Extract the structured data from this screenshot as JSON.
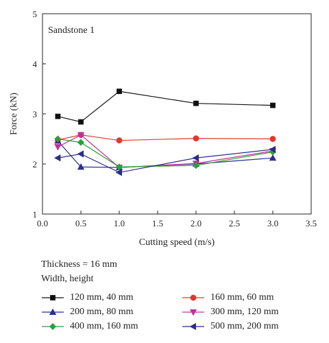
{
  "chart_data": {
    "type": "line",
    "annotation": "Sandstone 1",
    "xlabel": "Cutting speed (m/s)",
    "ylabel": "Force (kN)",
    "xlim": [
      0.0,
      3.5
    ],
    "ylim": [
      1,
      5
    ],
    "xticks": [
      "0.0",
      "0.5",
      "1.0",
      "1.5",
      "2.0",
      "2.5",
      "3.0",
      "3.5"
    ],
    "yticks": [
      "1",
      "2",
      "3",
      "4",
      "5"
    ],
    "x": [
      0.2,
      0.5,
      1.0,
      2.0,
      3.0
    ],
    "grid": false,
    "legend_placement": "bottom",
    "legend_heading": "Thickness = 16 mm",
    "legend_subheading": "Width, height",
    "series": [
      {
        "name": "120 mm, 40 mm",
        "values": [
          2.95,
          2.84,
          3.45,
          3.21,
          3.17
        ],
        "color": "#111111",
        "marker": "square"
      },
      {
        "name": "160 mm, 60 mm",
        "values": [
          2.48,
          2.58,
          2.47,
          2.51,
          2.5
        ],
        "color": "#e0392b",
        "marker": "circle"
      },
      {
        "name": "200 mm, 80 mm",
        "values": [
          2.46,
          1.94,
          1.93,
          2.0,
          2.12
        ],
        "color": "#2b2f8f",
        "marker": "triangle-up"
      },
      {
        "name": "300 mm, 120 mm",
        "values": [
          2.34,
          2.58,
          1.93,
          2.01,
          2.26
        ],
        "color": "#c0309a",
        "marker": "triangle-down"
      },
      {
        "name": "400 mm, 160 mm",
        "values": [
          2.5,
          2.43,
          1.94,
          1.97,
          2.24
        ],
        "color": "#2e9e3c",
        "marker": "diamond"
      },
      {
        "name": "500 mm, 200 mm",
        "values": [
          2.12,
          2.2,
          1.83,
          2.12,
          2.29
        ],
        "color": "#2c2c8a",
        "marker": "triangle-left"
      }
    ]
  }
}
